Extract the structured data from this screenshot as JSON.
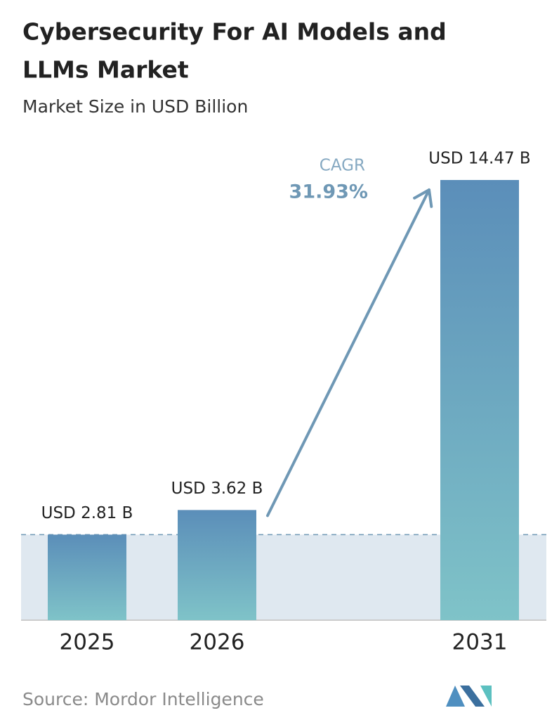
{
  "chart_data": {
    "type": "bar",
    "title": [
      "Cybersecurity For AI Models and",
      "LLMs Market"
    ],
    "subtitle": "Market Size in USD Billion",
    "categories": [
      "2025",
      "2026",
      "2031"
    ],
    "values": [
      2.81,
      3.62,
      14.47
    ],
    "value_labels": [
      "USD 2.81 B",
      "USD 3.62 B",
      "USD 14.47 B"
    ],
    "cagr_label": "CAGR",
    "cagr_value": "31.93%",
    "source": "Source: Mordor Intelligence"
  }
}
